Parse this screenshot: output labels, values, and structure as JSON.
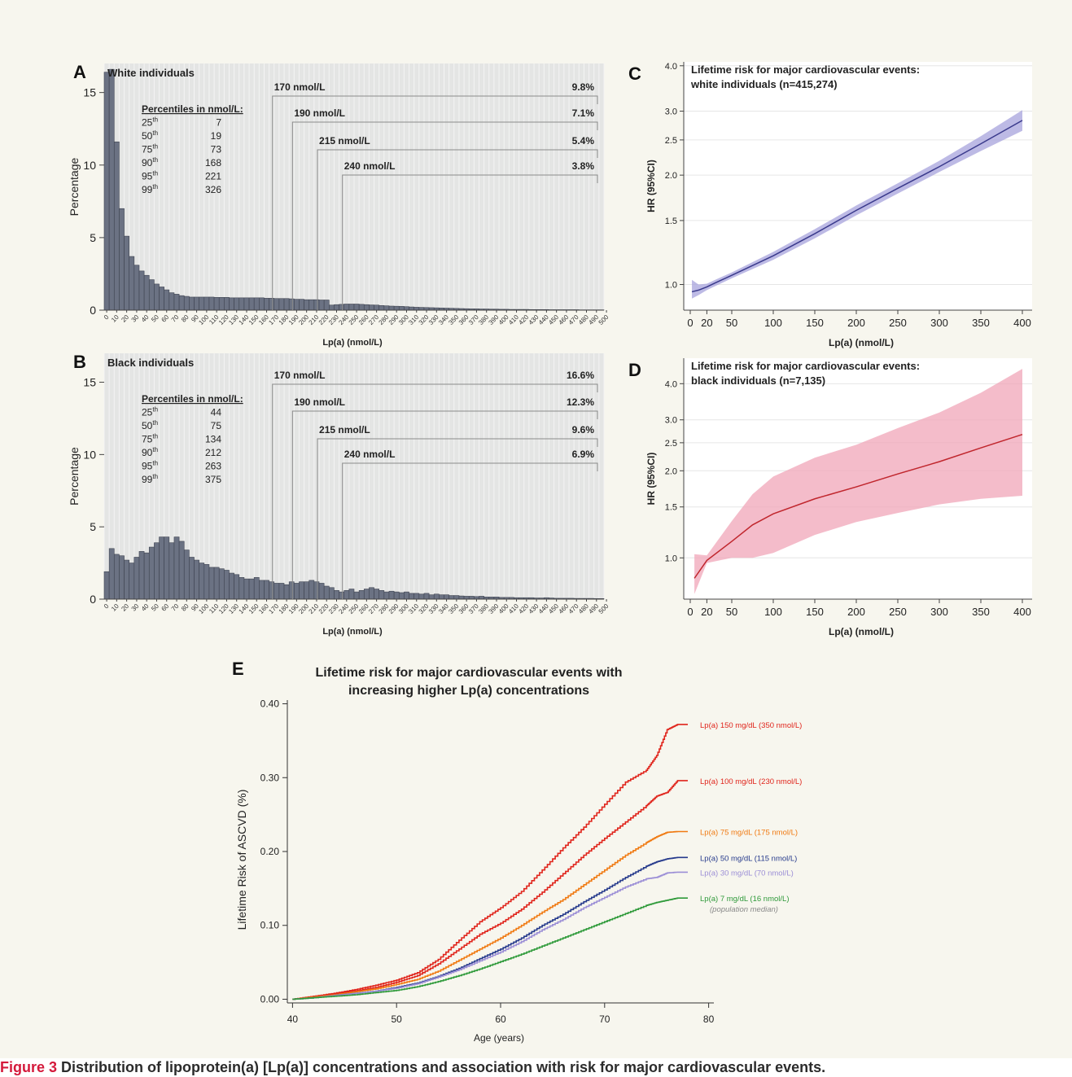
{
  "caption": {
    "fig_no": "Figure 3",
    "text": " Distribution of lipoprotein(a) [Lp(a)] concentrations and association with risk for major cardiovascular events."
  },
  "chart_data": [
    {
      "panel": "A",
      "type": "bar",
      "title": "White individuals",
      "xlabel": "Lp(a) (nmol/L)",
      "ylabel": "Percentage",
      "ylim": [
        0,
        17
      ],
      "yticks": [
        0,
        5,
        10,
        15
      ],
      "xlim": [
        0,
        500
      ],
      "bin_width": 5,
      "tick_labels": [
        "0",
        "10",
        "20",
        "30",
        "40",
        "50",
        "60",
        "70",
        "80",
        "90",
        "100",
        "110",
        "120",
        "130",
        "140",
        "150",
        "160",
        "170",
        "180",
        "190",
        "200",
        "210",
        "220",
        "230",
        "240",
        "250",
        "260",
        "270",
        "280",
        "290",
        "300",
        "310",
        "320",
        "330",
        "340",
        "350",
        "360",
        "370",
        "380",
        "390",
        "400",
        "410",
        "420",
        "430",
        "440",
        "450",
        "460",
        "470",
        "480",
        "490",
        "500"
      ],
      "values": [
        16.4,
        16.6,
        11.6,
        7,
        5.1,
        3.7,
        3.1,
        2.7,
        2.4,
        2.1,
        1.8,
        1.6,
        1.4,
        1.2,
        1.1,
        1,
        0.95,
        0.9,
        0.9,
        0.9,
        0.9,
        0.9,
        0.88,
        0.88,
        0.88,
        0.85,
        0.85,
        0.85,
        0.85,
        0.85,
        0.85,
        0.85,
        0.82,
        0.82,
        0.8,
        0.8,
        0.8,
        0.78,
        0.75,
        0.75,
        0.72,
        0.72,
        0.72,
        0.7,
        0.7,
        0.35,
        0.38,
        0.4,
        0.42,
        0.42,
        0.42,
        0.4,
        0.38,
        0.36,
        0.35,
        0.32,
        0.3,
        0.28,
        0.27,
        0.26,
        0.24,
        0.22,
        0.2,
        0.19,
        0.18,
        0.17,
        0.16,
        0.15,
        0.14,
        0.13,
        0.12,
        0.11,
        0.1,
        0.09,
        0.09,
        0.08,
        0.08,
        0.07,
        0.07,
        0.06,
        0.06,
        0.05,
        0.05,
        0.05,
        0.05,
        0.04,
        0.04,
        0.04,
        0.04,
        0.03,
        0.03,
        0.03,
        0.03,
        0.03,
        0.03,
        0.02,
        0.02,
        0.02,
        0.02,
        0.02
      ],
      "percentiles": {
        "heading": "Percentiles in nmol/L:",
        "rows": [
          {
            "n": "25",
            "sup": "th",
            "value": "7"
          },
          {
            "n": "50",
            "sup": "th",
            "value": "19"
          },
          {
            "n": "75",
            "sup": "th",
            "value": "73"
          },
          {
            "n": "90",
            "sup": "th",
            "value": "168"
          },
          {
            "n": "95",
            "sup": "th",
            "value": "221"
          },
          {
            "n": "99",
            "sup": "th",
            "value": "326"
          }
        ]
      },
      "thresholds": [
        {
          "x": 170,
          "label": "170 nmol/L",
          "percent": "9.8%"
        },
        {
          "x": 190,
          "label": "190 nmol/L",
          "percent": "7.1%"
        },
        {
          "x": 215,
          "label": "215 nmol/L",
          "percent": "5.4%"
        },
        {
          "x": 240,
          "label": "240 nmol/L",
          "percent": "3.8%"
        }
      ]
    },
    {
      "panel": "B",
      "type": "bar",
      "title": "Black individuals",
      "xlabel": "Lp(a) (nmol/L)",
      "ylabel": "Percentage",
      "ylim": [
        0,
        17
      ],
      "yticks": [
        0,
        5,
        10,
        15
      ],
      "xlim": [
        0,
        500
      ],
      "bin_width": 5,
      "tick_labels": [
        "0",
        "10",
        "20",
        "30",
        "40",
        "50",
        "60",
        "70",
        "80",
        "90",
        "100",
        "110",
        "120",
        "130",
        "140",
        "150",
        "160",
        "170",
        "180",
        "190",
        "200",
        "210",
        "220",
        "230",
        "240",
        "250",
        "260",
        "270",
        "280",
        "290",
        "300",
        "310",
        "320",
        "330",
        "340",
        "350",
        "360",
        "370",
        "380",
        "390",
        "400",
        "410",
        "420",
        "430",
        "440",
        "450",
        "460",
        "470",
        "480",
        "490",
        "500"
      ],
      "values": [
        1.9,
        3.5,
        3.1,
        3,
        2.7,
        2.5,
        2.9,
        3.3,
        3.2,
        3.6,
        3.9,
        4.3,
        4.3,
        3.9,
        4.3,
        4,
        3.4,
        2.9,
        2.7,
        2.5,
        2.4,
        2.2,
        2.2,
        2.1,
        2,
        1.8,
        1.7,
        1.5,
        1.4,
        1.4,
        1.5,
        1.3,
        1.3,
        1.2,
        1.1,
        1.1,
        1,
        1.2,
        1.1,
        1.2,
        1.2,
        1.3,
        1.2,
        1.1,
        0.9,
        0.8,
        0.6,
        0.5,
        0.6,
        0.7,
        0.5,
        0.6,
        0.7,
        0.8,
        0.7,
        0.6,
        0.5,
        0.55,
        0.5,
        0.45,
        0.5,
        0.4,
        0.4,
        0.35,
        0.4,
        0.3,
        0.35,
        0.3,
        0.3,
        0.25,
        0.25,
        0.22,
        0.2,
        0.2,
        0.18,
        0.2,
        0.15,
        0.15,
        0.15,
        0.12,
        0.12,
        0.12,
        0.1,
        0.1,
        0.1,
        0.1,
        0.08,
        0.08,
        0.1,
        0.08,
        0.06,
        0.06,
        0.06,
        0.06,
        0.05,
        0.05,
        0.05,
        0.05,
        0.04,
        0.04
      ],
      "percentiles": {
        "heading": "Percentiles in nmol/L:",
        "rows": [
          {
            "n": "25",
            "sup": "th",
            "value": "44"
          },
          {
            "n": "50",
            "sup": "th",
            "value": "75"
          },
          {
            "n": "75",
            "sup": "th",
            "value": "134"
          },
          {
            "n": "90",
            "sup": "th",
            "value": "212"
          },
          {
            "n": "95",
            "sup": "th",
            "value": "263"
          },
          {
            "n": "99",
            "sup": "th",
            "value": "375"
          }
        ]
      },
      "thresholds": [
        {
          "x": 170,
          "label": "170 nmol/L",
          "percent": "16.6%"
        },
        {
          "x": 190,
          "label": "190 nmol/L",
          "percent": "12.3%"
        },
        {
          "x": 215,
          "label": "215 nmol/L",
          "percent": "9.6%"
        },
        {
          "x": 240,
          "label": "240 nmol/L",
          "percent": "6.9%"
        }
      ]
    },
    {
      "panel": "C",
      "type": "line",
      "log_y": true,
      "title": "Lifetime risk for major cardiovascular events:",
      "subtitle": "white individuals (n=415,274)",
      "xlabel": "Lp(a)  (nmol/L)",
      "ylabel": "HR (95%CI)",
      "xlim": [
        0,
        400
      ],
      "ylim": [
        0.85,
        4.1
      ],
      "xticks": [
        0,
        20,
        50,
        100,
        150,
        200,
        250,
        300,
        350,
        400
      ],
      "yticks": [
        1.0,
        1.5,
        2.0,
        2.5,
        3.0,
        4.0
      ],
      "ytick_labels": [
        "1.0",
        "1.5",
        "2.0",
        "2.5",
        "3.0",
        "4.0"
      ],
      "color": "#3a3a8c",
      "band_color": "#a7a3dc",
      "x": [
        2,
        10,
        20,
        30,
        50,
        100,
        150,
        200,
        250,
        300,
        350,
        400
      ],
      "y": [
        0.955,
        0.965,
        0.985,
        1.01,
        1.06,
        1.2,
        1.38,
        1.6,
        1.84,
        2.11,
        2.44,
        2.83
      ],
      "lower": [
        0.915,
        0.935,
        0.965,
        0.99,
        1.04,
        1.17,
        1.34,
        1.55,
        1.78,
        2.04,
        2.33,
        2.65
      ],
      "upper": [
        1.03,
        1.0,
        1.005,
        1.03,
        1.08,
        1.23,
        1.42,
        1.65,
        1.9,
        2.19,
        2.56,
        3.02
      ]
    },
    {
      "panel": "D",
      "type": "line",
      "log_y": true,
      "title": "Lifetime risk for major cardiovascular events:",
      "subtitle": "black individuals (n=7,135)",
      "xlabel": "Lp(a)  (nmol/L)",
      "ylabel": "HR (95%CI)",
      "xlim": [
        0,
        400
      ],
      "ylim": [
        0.72,
        4.9
      ],
      "xticks": [
        0,
        20,
        50,
        100,
        150,
        200,
        250,
        300,
        350,
        400
      ],
      "yticks": [
        1.0,
        1.5,
        2.0,
        2.5,
        3.0,
        4.0
      ],
      "ytick_labels": [
        "1.0",
        "1.5",
        "2.0",
        "2.5",
        "3.0",
        "4.0"
      ],
      "color": "#c0262d",
      "band_color": "#f0a6b8",
      "x": [
        5,
        20,
        50,
        75,
        100,
        150,
        200,
        250,
        300,
        350,
        400
      ],
      "y": [
        0.85,
        0.98,
        1.14,
        1.3,
        1.42,
        1.6,
        1.76,
        1.95,
        2.15,
        2.4,
        2.67
      ],
      "lower": [
        0.75,
        0.96,
        1.0,
        1.0,
        1.04,
        1.2,
        1.33,
        1.43,
        1.53,
        1.6,
        1.64
      ],
      "upper": [
        1.03,
        1.02,
        1.34,
        1.66,
        1.91,
        2.22,
        2.46,
        2.81,
        3.18,
        3.72,
        4.5
      ]
    },
    {
      "panel": "E",
      "type": "line",
      "title": "Lifetime risk for major cardiovascular events with",
      "subtitle": "increasing higher Lp(a) concentrations",
      "xlabel": "Age (years)",
      "ylabel": "Lifetime Risk of ASCVD (%)",
      "xlim": [
        39.5,
        80.5
      ],
      "ylim": [
        -0.005,
        0.405
      ],
      "xticks": [
        40,
        50,
        60,
        70,
        80
      ],
      "yticks": [
        0,
        0.1,
        0.2,
        0.3,
        0.4
      ],
      "ytick_labels": [
        "0.00",
        "0.10",
        "0.20",
        "0.30",
        "0.40"
      ],
      "x": [
        40,
        42,
        44,
        46,
        48,
        50,
        52,
        54,
        56,
        58,
        60,
        62,
        64,
        66,
        68,
        70,
        72,
        74,
        75,
        76,
        77,
        78
      ],
      "series": [
        {
          "name": "Lp(a) 150 mg/dL (350 nmol/L)",
          "color": "#e0241b",
          "values": [
            0,
            0.004,
            0.008,
            0.013,
            0.019,
            0.026,
            0.036,
            0.054,
            0.08,
            0.105,
            0.124,
            0.146,
            0.175,
            0.205,
            0.233,
            0.264,
            0.294,
            0.31,
            0.33,
            0.365,
            0.372,
            0.372
          ]
        },
        {
          "name": "Lp(a) 100 mg/dL (230 nmol/L)",
          "color": "#e0241b",
          "values": [
            0,
            0.003,
            0.007,
            0.011,
            0.016,
            0.023,
            0.032,
            0.048,
            0.068,
            0.088,
            0.103,
            0.122,
            0.145,
            0.17,
            0.195,
            0.218,
            0.24,
            0.262,
            0.275,
            0.28,
            0.296,
            0.296
          ]
        },
        {
          "name": "Lp(a) 75 mg/dL (175 nmol/L)",
          "color": "#f07a12",
          "values": [
            0,
            0.003,
            0.006,
            0.01,
            0.014,
            0.02,
            0.027,
            0.038,
            0.053,
            0.068,
            0.083,
            0.1,
            0.118,
            0.135,
            0.155,
            0.175,
            0.195,
            0.212,
            0.22,
            0.226,
            0.227,
            0.227
          ]
        },
        {
          "name": "Lp(a) 50 mg/dL (115 nmol/L)",
          "color": "#263a8c",
          "values": [
            0,
            0.002,
            0.005,
            0.008,
            0.011,
            0.016,
            0.022,
            0.031,
            0.042,
            0.055,
            0.068,
            0.083,
            0.1,
            0.115,
            0.132,
            0.148,
            0.165,
            0.18,
            0.186,
            0.19,
            0.192,
            0.192
          ]
        },
        {
          "name": "Lp(a) 30 mg/dL (70 nmol/L)",
          "color": "#9b8ed6",
          "values": [
            0,
            0.002,
            0.005,
            0.008,
            0.011,
            0.015,
            0.021,
            0.03,
            0.04,
            0.052,
            0.064,
            0.078,
            0.094,
            0.108,
            0.124,
            0.138,
            0.152,
            0.163,
            0.165,
            0.171,
            0.172,
            0.172
          ]
        },
        {
          "name": "Lp(a) 7 mg/dL (16 nmol/L)",
          "note": "(population median)",
          "color": "#2f9a3a",
          "values": [
            0,
            0.002,
            0.004,
            0.006,
            0.009,
            0.012,
            0.017,
            0.024,
            0.032,
            0.041,
            0.051,
            0.061,
            0.072,
            0.083,
            0.094,
            0.105,
            0.116,
            0.127,
            0.131,
            0.134,
            0.137,
            0.137
          ]
        }
      ]
    }
  ]
}
